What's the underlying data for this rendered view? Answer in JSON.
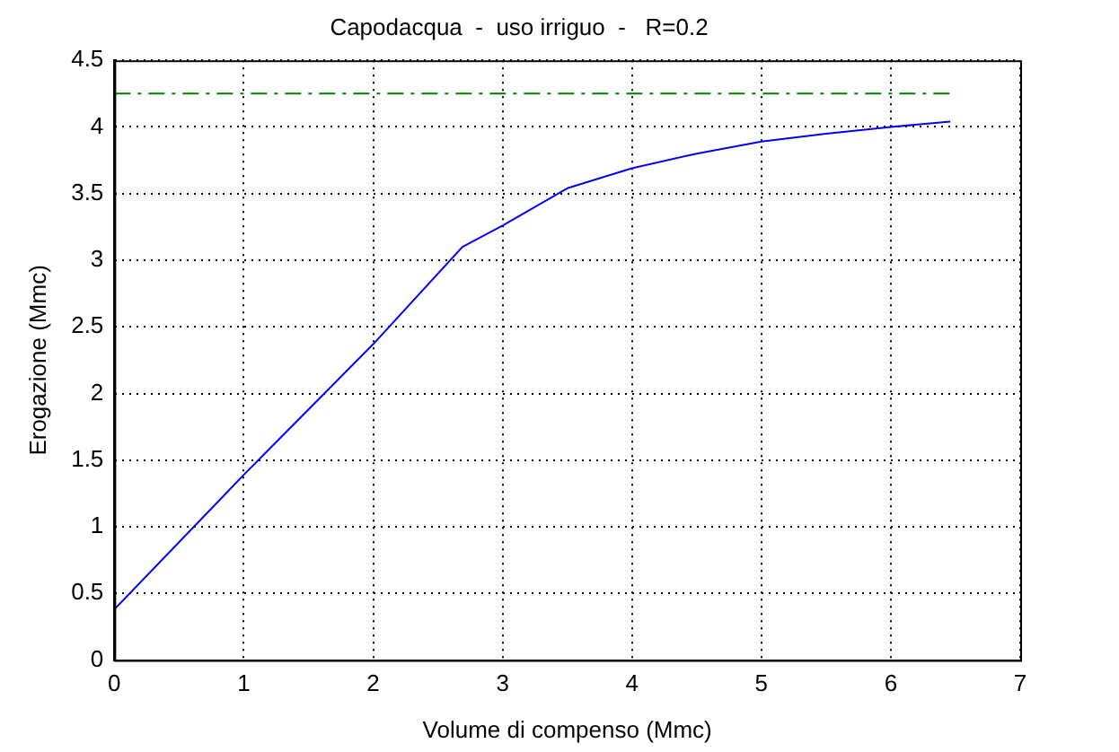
{
  "chart_data": {
    "type": "line",
    "title": "Capodacqua  -  uso irriguo  -   R=0.2",
    "xlabel": "Volume di compenso (Mmc)",
    "ylabel": "Erogazione (Mmc)",
    "xlim": [
      0,
      7
    ],
    "xticks": [
      0,
      1,
      2,
      3,
      4,
      5,
      6,
      7
    ],
    "ylim": [
      0,
      4.5
    ],
    "yticks": [
      0,
      0.5,
      1,
      1.5,
      2,
      2.5,
      3,
      3.5,
      4,
      4.5
    ],
    "grid": true,
    "marker": "none",
    "series": [
      {
        "color": "#0000ff",
        "line_style": "solid",
        "x": [
          0,
          1,
          2,
          2.69,
          3,
          3.5,
          4,
          4.5,
          5,
          5.5,
          6,
          6.46
        ],
        "values": [
          0.38,
          1.39,
          2.37,
          3.1,
          3.26,
          3.54,
          3.69,
          3.8,
          3.89,
          3.95,
          4.0,
          4.04
        ]
      },
      {
        "color": "#008000",
        "line_style": "dashed",
        "x": [
          0,
          6.46
        ],
        "values": [
          4.25,
          4.25
        ]
      }
    ]
  }
}
